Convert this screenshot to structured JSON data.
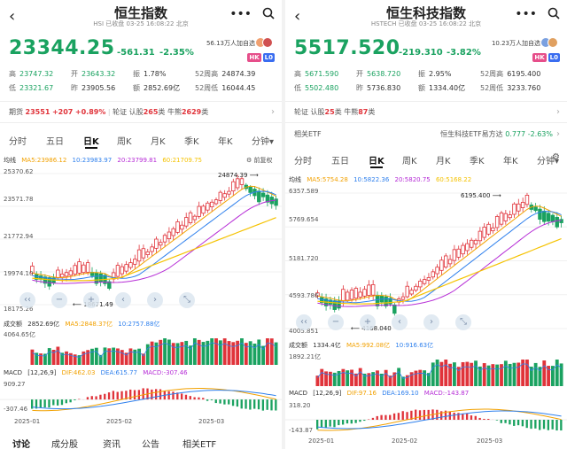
{
  "colors": {
    "up": "#e0333a",
    "down": "#1aa260",
    "ma5": "#f2a100",
    "ma10": "#2f80ed",
    "ma20": "#b62cd6",
    "ma60": "#f5c200"
  },
  "left": {
    "title": "恒生指数",
    "code": "HSI",
    "status": "已收盘 03-25 16:08:22 北京",
    "price": "23344.25",
    "change": "-561.31",
    "change_pct": "-2.35%",
    "followers": "56.13万人加自选",
    "badges": [
      "HK",
      "L0"
    ],
    "stats": [
      [
        {
          "label": "高",
          "value": "23747.32",
          "c": "g"
        },
        {
          "label": "开",
          "value": "23643.32",
          "c": "g"
        },
        {
          "label": "振",
          "value": "1.78%",
          "c": "k"
        },
        {
          "label": "52周高",
          "value": "24874.39",
          "c": "k"
        }
      ],
      [
        {
          "label": "低",
          "value": "23321.67",
          "c": "g"
        },
        {
          "label": "昨",
          "value": "23905.56",
          "c": "k"
        },
        {
          "label": "额",
          "value": "2852.69亿",
          "c": "k"
        },
        {
          "label": "52周低",
          "value": "16044.45",
          "c": "k"
        }
      ]
    ],
    "futures": {
      "label": "期货",
      "price": "23551",
      "chg": "+207",
      "pct": "+0.89%",
      "extra_prefix": "轮证 认股",
      "warrant": "265",
      "extra_mid": "类 牛熊",
      "cbbc": "2629",
      "extra_suffix": "类"
    },
    "tabs": [
      "分时",
      "五日",
      "日K",
      "周K",
      "月K",
      "季K",
      "年K",
      "分钟▾"
    ],
    "active_tab": "日K",
    "ma_line": {
      "label": "均线",
      "ma5": "MA5:23986.12",
      "ma10": "10:23983.97",
      "ma20": "20:23799.81",
      "ma60": "60:21709.75",
      "adj": "前复权"
    },
    "price_axis": [
      "25370.62",
      "23571.78",
      "21772.94",
      "19974.10",
      "18175.26"
    ],
    "high_marker": "24874.39",
    "low_marker": "18671.49",
    "volume": {
      "label": "成交额",
      "value": "2852.69亿",
      "ma5": "MA5:2848.37亿",
      "ma10": "10:2757.88亿",
      "axis_top": "4064.65亿"
    },
    "macd": {
      "label": "MACD",
      "params": "[12,26,9]",
      "dif": "DIF:462.03",
      "dea": "DEA:615.77",
      "macd": "MACD:-307.46",
      "axis_top": "909.27",
      "axis_bot": "-307.46"
    },
    "dates": [
      "2025-01",
      "2025-02",
      "2025-03"
    ],
    "bottom_tabs": [
      "讨论",
      "成分股",
      "资讯",
      "公告",
      "相关ETF"
    ]
  },
  "right": {
    "title": "恒生科技指数",
    "code": "HSTECH",
    "status": "已收盘 03-25 16:08:22 北京",
    "price": "5517.520",
    "change": "-219.310",
    "change_pct": "-3.82%",
    "followers": "10.23万人加自选",
    "badges": [
      "HK",
      "L0"
    ],
    "stats": [
      [
        {
          "label": "高",
          "value": "5671.590",
          "c": "g"
        },
        {
          "label": "开",
          "value": "5638.720",
          "c": "g"
        },
        {
          "label": "振",
          "value": "2.95%",
          "c": "k"
        },
        {
          "label": "52周高",
          "value": "6195.400",
          "c": "k"
        }
      ],
      [
        {
          "label": "低",
          "value": "5502.480",
          "c": "g"
        },
        {
          "label": "昨",
          "value": "5736.830",
          "c": "k"
        },
        {
          "label": "额",
          "value": "1334.40亿",
          "c": "k"
        },
        {
          "label": "52周低",
          "value": "3233.760",
          "c": "k"
        }
      ]
    ],
    "warrants": {
      "prefix": "轮证 认股",
      "warrant": "25",
      "mid": "类 牛熊",
      "cbbc": "87",
      "suffix": "类"
    },
    "etf": {
      "label": "相关ETF",
      "name": "恒生科技ETF易方达",
      "price": "0.777",
      "pct": "-2.63%"
    },
    "tabs": [
      "分时",
      "五日",
      "日K",
      "周K",
      "月K",
      "季K",
      "年K",
      "分钟▾"
    ],
    "active_tab": "日K",
    "ma_line": {
      "label": "均线",
      "ma5": "MA5:5754.28",
      "ma10": "10:5822.36",
      "ma20": "20:5820.75",
      "ma60": "60:5168.22"
    },
    "price_axis": [
      "6357.589",
      "5769.654",
      "5181.720",
      "4593.786",
      "4005.851"
    ],
    "high_marker": "6195.400",
    "low_marker": "4168.040",
    "volume": {
      "label": "成交额",
      "value": "1334.4亿",
      "ma5": "MA5:992.08亿",
      "ma10": "10:916.63亿",
      "axis_top": "1892.21亿"
    },
    "macd": {
      "label": "MACD",
      "params": "[12,26,9]",
      "dif": "DIF:97.16",
      "dea": "DEA:169.10",
      "macd": "MACD:-143.87",
      "axis_top": "318.20",
      "axis_bot": "-143.87"
    },
    "dates": [
      "2025-01",
      "2025-02",
      "2025-03"
    ]
  }
}
